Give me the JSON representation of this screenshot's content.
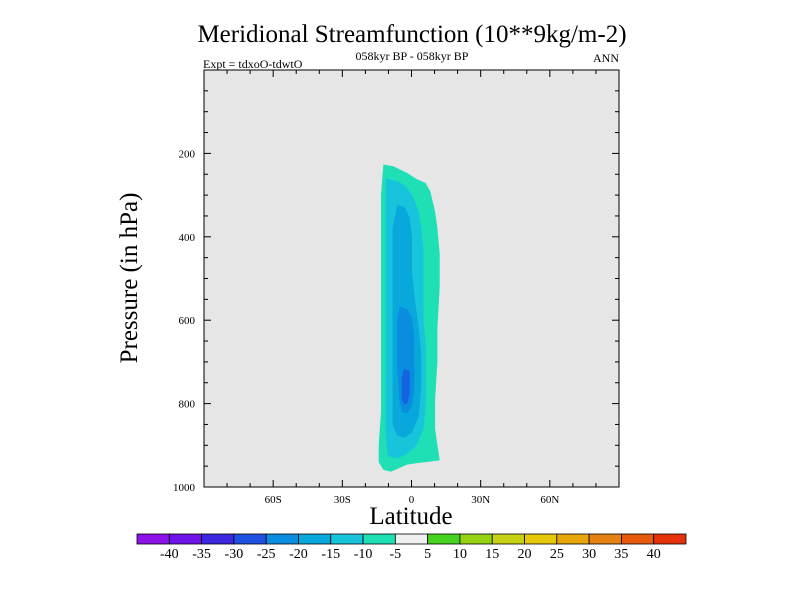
{
  "chart_data": {
    "type": "contour",
    "title": "Meridional Streamfunction (10**9kg/m-2)",
    "left_label": "Expt = tdxoO-tdwtO",
    "center_label": "058kyr BP - 058kyr BP",
    "right_label": "ANN",
    "xlabel": "Latitude",
    "ylabel": "Pressure (in hPa)",
    "xlim": [
      -90,
      90
    ],
    "ylim": [
      0,
      1000
    ],
    "y_inverted": true,
    "x_ticks": [
      {
        "value": -60,
        "label": "60S"
      },
      {
        "value": -30,
        "label": "30S"
      },
      {
        "value": 0,
        "label": "0"
      },
      {
        "value": 30,
        "label": "30N"
      },
      {
        "value": 60,
        "label": "60N"
      }
    ],
    "y_ticks": [
      {
        "value": 200,
        "label": "200"
      },
      {
        "value": 400,
        "label": "400"
      },
      {
        "value": 600,
        "label": "600"
      },
      {
        "value": 800,
        "label": "800"
      },
      {
        "value": 1000,
        "label": "1000"
      }
    ],
    "missing_color": "#e6e6e6",
    "contour_regions": [
      {
        "level": "-10 to -5",
        "color": "#1ee0b4",
        "points": [
          [
            -12,
            228
          ],
          [
            -8,
            232
          ],
          [
            -2,
            248
          ],
          [
            2,
            262
          ],
          [
            6,
            272
          ],
          [
            8,
            292
          ],
          [
            10,
            340
          ],
          [
            11,
            380
          ],
          [
            12,
            440
          ],
          [
            12,
            520
          ],
          [
            11,
            620
          ],
          [
            11,
            700
          ],
          [
            10,
            790
          ],
          [
            10,
            860
          ],
          [
            11,
            900
          ],
          [
            12,
            935
          ],
          [
            8,
            938
          ],
          [
            2,
            942
          ],
          [
            -2,
            945
          ],
          [
            -6,
            955
          ],
          [
            -9,
            962
          ],
          [
            -12,
            958
          ],
          [
            -14,
            940
          ],
          [
            -14,
            900
          ],
          [
            -13,
            820
          ],
          [
            -13,
            700
          ],
          [
            -13,
            560
          ],
          [
            -13,
            420
          ],
          [
            -13,
            300
          ]
        ]
      },
      {
        "level": "-15 to -10",
        "color": "#17c4dc",
        "points": [
          [
            -11,
            262
          ],
          [
            -6,
            268
          ],
          [
            -3,
            278
          ],
          [
            0,
            300
          ],
          [
            3,
            340
          ],
          [
            4,
            380
          ],
          [
            5,
            430
          ],
          [
            5,
            520
          ],
          [
            5,
            600
          ],
          [
            6,
            660
          ],
          [
            6,
            720
          ],
          [
            6,
            800
          ],
          [
            5,
            860
          ],
          [
            2,
            900
          ],
          [
            -2,
            920
          ],
          [
            -6,
            930
          ],
          [
            -10,
            925
          ],
          [
            -11,
            880
          ],
          [
            -11,
            800
          ],
          [
            -11,
            700
          ],
          [
            -11,
            560
          ],
          [
            -11,
            420
          ],
          [
            -11,
            330
          ]
        ]
      },
      {
        "level": "-20 to -15",
        "color": "#08a8dc",
        "points": [
          [
            -6,
            325
          ],
          [
            -3,
            330
          ],
          [
            -1,
            355
          ],
          [
            0,
            400
          ],
          [
            0,
            480
          ],
          [
            1,
            540
          ],
          [
            2,
            580
          ],
          [
            3,
            620
          ],
          [
            4,
            680
          ],
          [
            4,
            760
          ],
          [
            3,
            830
          ],
          [
            0,
            868
          ],
          [
            -3,
            880
          ],
          [
            -6,
            876
          ],
          [
            -8,
            850
          ],
          [
            -8,
            760
          ],
          [
            -8,
            660
          ],
          [
            -8,
            560
          ],
          [
            -8,
            460
          ],
          [
            -8,
            380
          ]
        ]
      },
      {
        "level": "-25 to -20",
        "color": "#0a8cdf",
        "points": [
          [
            -5,
            568
          ],
          [
            -2,
            575
          ],
          [
            0,
            595
          ],
          [
            1,
            640
          ],
          [
            1,
            700
          ],
          [
            1,
            760
          ],
          [
            0,
            805
          ],
          [
            -2,
            822
          ],
          [
            -4,
            820
          ],
          [
            -5,
            790
          ],
          [
            -6,
            720
          ],
          [
            -6,
            640
          ],
          [
            -6,
            600
          ]
        ]
      },
      {
        "level": "-30 to -25",
        "color": "#1464e2",
        "points": [
          [
            -3,
            718
          ],
          [
            -1,
            722
          ],
          [
            -1,
            750
          ],
          [
            -1,
            778
          ],
          [
            -2,
            798
          ],
          [
            -3,
            800
          ],
          [
            -4,
            792
          ],
          [
            -4,
            760
          ],
          [
            -4,
            735
          ]
        ]
      }
    ],
    "colorbar": {
      "colors": [
        "#8c14e8",
        "#6e14e8",
        "#3c28e0",
        "#1e50e2",
        "#0a8cdf",
        "#08a8dc",
        "#17c4dc",
        "#1ee0b4",
        "#f0f0f0",
        "#46d21e",
        "#96d214",
        "#c8d214",
        "#e6c80a",
        "#e6a50a",
        "#e68214",
        "#e65a0a",
        "#e6320a"
      ],
      "labels": [
        "-40",
        "-35",
        "-30",
        "-25",
        "-20",
        "-15",
        "-10",
        "-5",
        "5",
        "10",
        "15",
        "20",
        "25",
        "30",
        "35",
        "40"
      ]
    }
  }
}
